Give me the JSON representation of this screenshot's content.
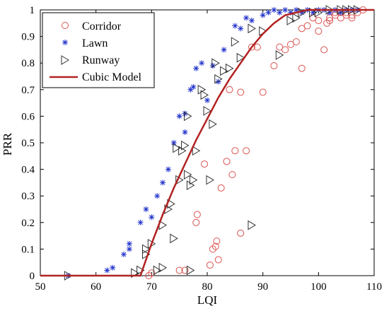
{
  "chart_data": {
    "type": "scatter",
    "title": "",
    "xlabel": "LQI",
    "ylabel": "PRR",
    "xlim": [
      50,
      110
    ],
    "ylim": [
      0,
      1
    ],
    "xticks": [
      50,
      60,
      70,
      80,
      90,
      100,
      110
    ],
    "yticks": [
      0,
      0.1,
      0.2,
      0.3,
      0.4,
      0.5,
      0.6,
      0.7,
      0.8,
      0.9,
      1
    ],
    "grid": false,
    "legend_position": "top-left",
    "series": [
      {
        "name": "Corridor",
        "marker": "circle",
        "color": "#d9534f",
        "points": [
          [
            69.5,
            0.0
          ],
          [
            70,
            0.01
          ],
          [
            75,
            0.02
          ],
          [
            76,
            0.02
          ],
          [
            78,
            0.2
          ],
          [
            78.2,
            0.23
          ],
          [
            79.5,
            0.42
          ],
          [
            80.5,
            0.04
          ],
          [
            81,
            0.1
          ],
          [
            81.5,
            0.11
          ],
          [
            81.7,
            0.13
          ],
          [
            82,
            0.06
          ],
          [
            82.5,
            0.33
          ],
          [
            83.5,
            0.43
          ],
          [
            84.5,
            0.38
          ],
          [
            85,
            0.47
          ],
          [
            86,
            0.16
          ],
          [
            87,
            0.47
          ],
          [
            84,
            0.7
          ],
          [
            86,
            0.69
          ],
          [
            88,
            0.86
          ],
          [
            89,
            0.86
          ],
          [
            90,
            0.69
          ],
          [
            92,
            0.79
          ],
          [
            93,
            0.86
          ],
          [
            94,
            0.85
          ],
          [
            95,
            0.87
          ],
          [
            96,
            0.88
          ],
          [
            97,
            0.93
          ],
          [
            97,
            0.78
          ],
          [
            99,
            0.97
          ],
          [
            100,
            0.92
          ],
          [
            101,
            0.85
          ],
          [
            101.5,
            0.95
          ],
          [
            102,
            0.97
          ],
          [
            103,
            0.98
          ],
          [
            104,
            0.97
          ],
          [
            105,
            0.98
          ],
          [
            106,
            0.97
          ],
          [
            107,
            0.99
          ],
          [
            108,
            1.0
          ],
          [
            98,
            0.94
          ],
          [
            100,
            0.96
          ],
          [
            102,
            0.96
          ],
          [
            104,
            0.99
          ],
          [
            105,
            0.99
          ],
          [
            106,
            0.98
          ],
          [
            103,
            0.99
          ]
        ]
      },
      {
        "name": "Lawn",
        "marker": "star",
        "color": "#2233cc",
        "points": [
          [
            55,
            0.0
          ],
          [
            62,
            0.02
          ],
          [
            63,
            0.03
          ],
          [
            65,
            0.08
          ],
          [
            66,
            0.1
          ],
          [
            66,
            0.12
          ],
          [
            68,
            0.2
          ],
          [
            69,
            0.25
          ],
          [
            70,
            0.22
          ],
          [
            71,
            0.3
          ],
          [
            72,
            0.35
          ],
          [
            73,
            0.4
          ],
          [
            74,
            0.5
          ],
          [
            75,
            0.6
          ],
          [
            76,
            0.61
          ],
          [
            76,
            0.54
          ],
          [
            77,
            0.7
          ],
          [
            77.5,
            0.71
          ],
          [
            78,
            0.78
          ],
          [
            79,
            0.8
          ],
          [
            80,
            0.66
          ],
          [
            81,
            0.79
          ],
          [
            82,
            0.73
          ],
          [
            83,
            0.85
          ],
          [
            85,
            0.94
          ],
          [
            86,
            0.93
          ],
          [
            87,
            0.97
          ],
          [
            88,
            0.96
          ],
          [
            90,
            0.98
          ],
          [
            91,
            0.99
          ],
          [
            92,
            1.0
          ],
          [
            93,
            0.99
          ],
          [
            94,
            1.0
          ],
          [
            95,
            0.99
          ],
          [
            96,
            1.0
          ],
          [
            97,
            0.99
          ],
          [
            98,
            1.0
          ],
          [
            99,
            0.99
          ],
          [
            100,
            1.0
          ],
          [
            101,
            1.0
          ],
          [
            102,
            0.99
          ],
          [
            103,
            1.0
          ],
          [
            104,
            0.99
          ],
          [
            105,
            1.0
          ],
          [
            106,
            1.0
          ],
          [
            107,
            1.0
          ]
        ]
      },
      {
        "name": "Runway",
        "marker": "triangle-right",
        "color": "#333333",
        "points": [
          [
            55,
            0.0
          ],
          [
            67,
            0.01
          ],
          [
            68,
            0.02
          ],
          [
            69,
            0.08
          ],
          [
            69,
            0.1
          ],
          [
            70,
            0.12
          ],
          [
            71,
            0.02
          ],
          [
            72,
            0.03
          ],
          [
            72,
            0.19
          ],
          [
            73,
            0.25
          ],
          [
            73.5,
            0.27
          ],
          [
            74,
            0.14
          ],
          [
            74.5,
            0.48
          ],
          [
            75,
            0.36
          ],
          [
            75.5,
            0.47
          ],
          [
            76,
            0.49
          ],
          [
            76.5,
            0.38
          ],
          [
            76.5,
            0.6
          ],
          [
            77,
            0.34
          ],
          [
            77.5,
            0.36
          ],
          [
            77,
            0.02
          ],
          [
            78,
            0.47
          ],
          [
            79,
            0.7
          ],
          [
            79.5,
            0.68
          ],
          [
            80,
            0.62
          ],
          [
            80.5,
            0.36
          ],
          [
            81,
            0.57
          ],
          [
            81.5,
            0.8
          ],
          [
            82,
            0.74
          ],
          [
            83,
            0.77
          ],
          [
            84,
            0.78
          ],
          [
            85,
            0.88
          ],
          [
            86,
            0.82
          ],
          [
            88,
            0.19
          ],
          [
            88,
            0.93
          ],
          [
            90,
            0.92
          ],
          [
            93,
            0.83
          ],
          [
            95,
            0.96
          ],
          [
            96,
            0.97
          ],
          [
            97,
            0.99
          ],
          [
            99,
            0.99
          ],
          [
            100,
            0.99
          ],
          [
            102,
            1.0
          ],
          [
            104,
            1.0
          ],
          [
            105,
            1.0
          ],
          [
            106,
            1.0
          ],
          [
            107,
            1.0
          ]
        ]
      },
      {
        "name": "Cubic Model",
        "marker": "line",
        "color": "#b22222",
        "points": [
          [
            50,
            0.0
          ],
          [
            68,
            0.0
          ],
          [
            70,
            0.12
          ],
          [
            72,
            0.23
          ],
          [
            74,
            0.33
          ],
          [
            76,
            0.42
          ],
          [
            78,
            0.51
          ],
          [
            80,
            0.59
          ],
          [
            82,
            0.67
          ],
          [
            84,
            0.74
          ],
          [
            86,
            0.8
          ],
          [
            88,
            0.86
          ],
          [
            90,
            0.91
          ],
          [
            92,
            0.95
          ],
          [
            94,
            0.98
          ],
          [
            96,
            0.99
          ],
          [
            98,
            1.0
          ],
          [
            110,
            1.0
          ]
        ]
      }
    ]
  }
}
